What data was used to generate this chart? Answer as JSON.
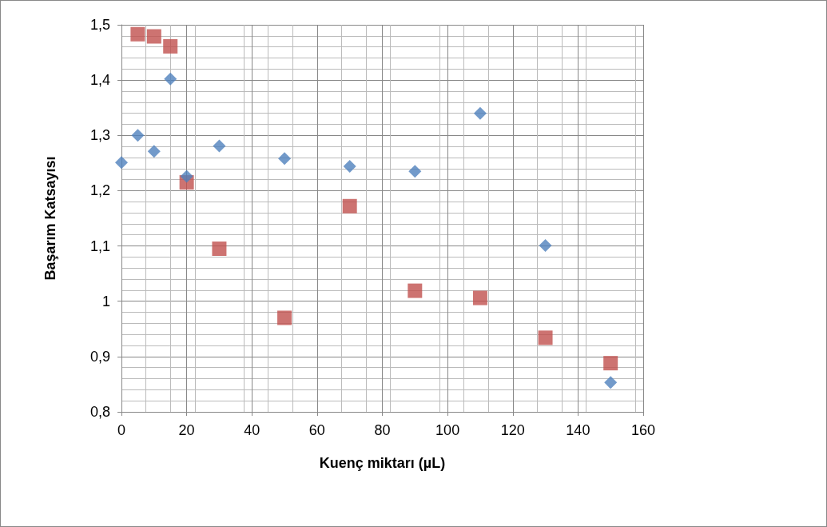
{
  "chart_data": {
    "type": "scatter",
    "xlabel": "Kuenç miktarı (µL)",
    "ylabel": "Başarım Katsayısı",
    "x": [
      0,
      5,
      10,
      15,
      20,
      30,
      50,
      70,
      90,
      110,
      130,
      150
    ],
    "series": [
      {
        "color": "#4f81bd",
        "marker": "diamond",
        "values": [
          1.251,
          1.3,
          1.271,
          1.402,
          1.226,
          1.281,
          1.258,
          1.244,
          1.235,
          1.34,
          1.101,
          0.853
        ]
      },
      {
        "color": "#c0504d",
        "marker": "square",
        "x": [
          5,
          10,
          15,
          20,
          30,
          50,
          70,
          90,
          110,
          130,
          150
        ],
        "values": [
          1.483,
          1.479,
          1.461,
          1.215,
          1.095,
          0.97,
          1.172,
          1.019,
          1.006,
          0.934,
          0.888
        ]
      }
    ],
    "xlim": [
      0,
      160
    ],
    "xticks": [
      0,
      20,
      40,
      60,
      80,
      100,
      120,
      140,
      160
    ],
    "ylim": [
      0.8,
      1.5
    ],
    "yticks": [
      {
        "value": 0.8,
        "label": "0,8"
      },
      {
        "value": 0.9,
        "label": "0,9"
      },
      1,
      {
        "value": 1.1,
        "label": "1,1"
      },
      {
        "value": 1.2,
        "label": "1,2"
      },
      {
        "value": 1.3,
        "label": "1,3"
      },
      {
        "value": 1.4,
        "label": "1,4"
      },
      {
        "value": 1.5,
        "label": "1,5"
      }
    ],
    "grid": true
  }
}
